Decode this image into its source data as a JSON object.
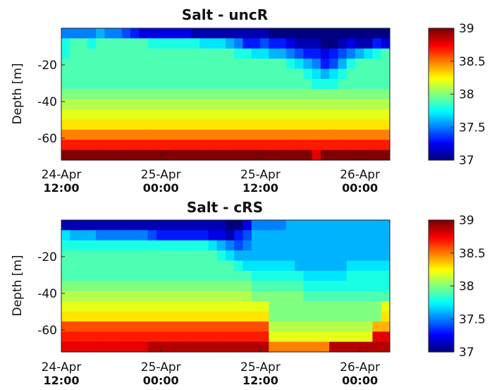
{
  "chart_data": [
    {
      "type": "heatmap",
      "title": "Salt - uncR",
      "ylabel": "Depth [m]",
      "xlabel": "",
      "x_range": [
        0,
        1.65
      ],
      "ylim": [
        -72,
        0
      ],
      "grid": false,
      "x_ticks": [
        {
          "x": 0.0,
          "line1": "24-Apr",
          "line2": "12:00"
        },
        {
          "x": 0.5,
          "line1": "25-Apr",
          "line2": "00:00"
        },
        {
          "x": 1.0,
          "line1": "25-Apr",
          "line2": "12:00"
        },
        {
          "x": 1.5,
          "line1": "26-Apr",
          "line2": "00:00"
        }
      ],
      "y_ticks": [
        {
          "v": -20,
          "label": "-20"
        },
        {
          "v": -40,
          "label": "-40"
        },
        {
          "v": -60,
          "label": "-60"
        }
      ],
      "colorbar": {
        "min": 37,
        "max": 39,
        "ticks": [
          {
            "v": 39,
            "label": "39"
          },
          {
            "v": 38.5,
            "label": "38.5"
          },
          {
            "v": 38,
            "label": "38"
          },
          {
            "v": 37.5,
            "label": "37.5"
          },
          {
            "v": 37,
            "label": "37"
          }
        ]
      },
      "values": [
        [
          37.5,
          37.5,
          37.5,
          37.5,
          37.6,
          37.5,
          37.5,
          37.4,
          37.3,
          37.2,
          37.2,
          37.2,
          37.2,
          37.2,
          37.2,
          37.1,
          37.1,
          37.1,
          37.1,
          37.1,
          37.1,
          37.1,
          37.1,
          37.1,
          37.0,
          37.0,
          37.0,
          37.0,
          37.0,
          37.0,
          37.0,
          37.0,
          37.0,
          37.0,
          37.0,
          37.0,
          37.0,
          37.0
        ],
        [
          37.8,
          37.9,
          37.9,
          37.8,
          37.9,
          37.9,
          37.9,
          37.9,
          37.9,
          37.9,
          37.8,
          37.8,
          37.8,
          37.8,
          37.8,
          37.8,
          37.7,
          37.7,
          37.7,
          37.6,
          37.5,
          37.3,
          37.3,
          37.4,
          37.3,
          37.3,
          37.2,
          37.1,
          37.1,
          37.1,
          37.0,
          37.0,
          37.1,
          37.2,
          37.1,
          37.1,
          37.3,
          37.2
        ],
        [
          37.8,
          37.9,
          37.9,
          37.9,
          37.9,
          37.9,
          37.9,
          37.9,
          37.9,
          37.9,
          37.9,
          37.9,
          37.9,
          37.9,
          37.9,
          37.9,
          37.9,
          37.9,
          37.9,
          37.9,
          37.8,
          37.8,
          37.7,
          37.7,
          37.6,
          37.6,
          37.5,
          37.4,
          37.3,
          37.3,
          37.2,
          37.3,
          37.4,
          37.5,
          37.6,
          37.7,
          37.8,
          37.9
        ],
        [
          37.9,
          37.9,
          37.9,
          37.9,
          37.9,
          37.9,
          37.9,
          37.9,
          37.9,
          37.9,
          37.9,
          37.9,
          37.9,
          37.9,
          37.9,
          37.9,
          37.9,
          37.9,
          37.9,
          37.9,
          37.9,
          37.9,
          37.9,
          37.9,
          37.9,
          37.9,
          37.8,
          37.7,
          37.6,
          37.5,
          37.3,
          37.4,
          37.6,
          37.8,
          37.9,
          37.9,
          37.9,
          37.9
        ],
        [
          37.9,
          37.9,
          37.9,
          37.9,
          37.9,
          37.9,
          37.9,
          37.9,
          37.9,
          37.9,
          37.9,
          37.9,
          37.9,
          37.9,
          37.9,
          37.9,
          37.9,
          37.9,
          37.9,
          37.9,
          37.9,
          37.9,
          37.9,
          37.9,
          37.9,
          37.9,
          37.9,
          37.9,
          37.8,
          37.7,
          37.6,
          37.7,
          37.8,
          37.9,
          37.9,
          37.9,
          37.9,
          37.9
        ],
        [
          37.9,
          37.9,
          37.9,
          37.9,
          37.9,
          37.9,
          37.9,
          37.9,
          37.9,
          37.9,
          37.9,
          37.9,
          37.9,
          37.9,
          37.9,
          37.9,
          37.9,
          37.9,
          37.9,
          37.9,
          37.9,
          37.9,
          37.9,
          37.9,
          37.9,
          37.9,
          37.9,
          37.9,
          37.9,
          37.8,
          37.8,
          37.8,
          37.9,
          37.9,
          37.9,
          37.9,
          37.9,
          37.9
        ],
        [
          38.0,
          38.0,
          38.0,
          38.0,
          38.0,
          38.0,
          38.0,
          38.0,
          38.0,
          38.0,
          38.0,
          38.0,
          38.0,
          38.0,
          38.0,
          38.0,
          38.0,
          38.0,
          38.0,
          38.0,
          38.0,
          38.0,
          38.0,
          38.0,
          38.0,
          38.0,
          38.0,
          38.0,
          38.0,
          38.0,
          38.0,
          38.0,
          38.0,
          38.0,
          38.0,
          38.0,
          38.0,
          38.0
        ],
        [
          38.1,
          38.1,
          38.1,
          38.1,
          38.1,
          38.1,
          38.1,
          38.1,
          38.1,
          38.1,
          38.1,
          38.1,
          38.1,
          38.1,
          38.1,
          38.1,
          38.1,
          38.1,
          38.1,
          38.1,
          38.1,
          38.1,
          38.1,
          38.1,
          38.1,
          38.1,
          38.1,
          38.1,
          38.1,
          38.1,
          38.1,
          38.1,
          38.1,
          38.1,
          38.1,
          38.1,
          38.1,
          38.1
        ],
        [
          38.2,
          38.2,
          38.2,
          38.2,
          38.2,
          38.2,
          38.2,
          38.2,
          38.2,
          38.2,
          38.2,
          38.2,
          38.2,
          38.2,
          38.2,
          38.2,
          38.2,
          38.2,
          38.2,
          38.2,
          38.2,
          38.2,
          38.2,
          38.2,
          38.2,
          38.2,
          38.2,
          38.2,
          38.2,
          38.2,
          38.2,
          38.2,
          38.2,
          38.2,
          38.2,
          38.2,
          38.2,
          38.2
        ],
        [
          38.3,
          38.3,
          38.3,
          38.3,
          38.3,
          38.3,
          38.3,
          38.3,
          38.3,
          38.3,
          38.3,
          38.3,
          38.3,
          38.3,
          38.3,
          38.3,
          38.3,
          38.3,
          38.3,
          38.3,
          38.3,
          38.3,
          38.3,
          38.3,
          38.3,
          38.3,
          38.3,
          38.3,
          38.3,
          38.3,
          38.3,
          38.3,
          38.3,
          38.3,
          38.3,
          38.3,
          38.3,
          38.3
        ],
        [
          38.5,
          38.5,
          38.5,
          38.5,
          38.5,
          38.5,
          38.5,
          38.5,
          38.5,
          38.5,
          38.5,
          38.5,
          38.5,
          38.5,
          38.5,
          38.5,
          38.5,
          38.5,
          38.5,
          38.5,
          38.5,
          38.5,
          38.5,
          38.5,
          38.5,
          38.5,
          38.5,
          38.5,
          38.5,
          38.5,
          38.5,
          38.5,
          38.5,
          38.5,
          38.5,
          38.5,
          38.5,
          38.5
        ],
        [
          38.7,
          38.7,
          38.7,
          38.7,
          38.7,
          38.7,
          38.7,
          38.7,
          38.7,
          38.7,
          38.7,
          38.7,
          38.7,
          38.7,
          38.7,
          38.7,
          38.7,
          38.7,
          38.7,
          38.7,
          38.7,
          38.7,
          38.7,
          38.7,
          38.7,
          38.7,
          38.7,
          38.7,
          38.7,
          38.7,
          38.7,
          38.7,
          38.7,
          38.7,
          38.7,
          38.7,
          38.7,
          38.7
        ],
        [
          39.0,
          39.0,
          39.0,
          39.0,
          39.0,
          39.0,
          39.0,
          39.0,
          39.0,
          39.0,
          39.0,
          39.0,
          39.0,
          39.0,
          39.0,
          39.0,
          39.0,
          39.0,
          39.0,
          39.0,
          39.0,
          39.0,
          39.0,
          39.0,
          39.0,
          39.0,
          39.0,
          39.0,
          39.0,
          38.8,
          39.0,
          39.0,
          39.0,
          39.0,
          39.0,
          39.0,
          39.0,
          39.0
        ]
      ]
    },
    {
      "type": "heatmap",
      "title": "Salt - cRS",
      "ylabel": "Depth [m]",
      "xlabel": "",
      "x_range": [
        0,
        1.65
      ],
      "ylim": [
        -72,
        0
      ],
      "grid": false,
      "x_ticks": [
        {
          "x": 0.0,
          "line1": "24-Apr",
          "line2": "12:00"
        },
        {
          "x": 0.5,
          "line1": "25-Apr",
          "line2": "00:00"
        },
        {
          "x": 1.0,
          "line1": "25-Apr",
          "line2": "12:00"
        },
        {
          "x": 1.5,
          "line1": "26-Apr",
          "line2": "00:00"
        }
      ],
      "y_ticks": [
        {
          "v": -20,
          "label": "-20"
        },
        {
          "v": -40,
          "label": "-40"
        },
        {
          "v": -60,
          "label": "-60"
        }
      ],
      "colorbar": {
        "min": 37,
        "max": 39,
        "ticks": [
          {
            "v": 39,
            "label": "39"
          },
          {
            "v": 38.5,
            "label": "38.5"
          },
          {
            "v": 38,
            "label": "38"
          },
          {
            "v": 37.5,
            "label": "37.5"
          },
          {
            "v": 37,
            "label": "37"
          }
        ]
      },
      "values": [
        [
          37.1,
          37.1,
          37.1,
          37.1,
          37.1,
          37.1,
          37.1,
          37.1,
          37.1,
          37.1,
          37.1,
          37.1,
          37.1,
          37.1,
          37.1,
          37.1,
          37.1,
          37.1,
          37.1,
          37.0,
          37.0,
          37.2,
          37.5,
          37.5,
          37.5,
          37.5,
          37.6,
          37.6,
          37.6,
          37.6,
          37.6,
          37.6,
          37.6,
          37.6,
          37.6,
          37.6,
          37.6,
          37.6
        ],
        [
          37.7,
          37.6,
          37.6,
          37.6,
          37.5,
          37.5,
          37.5,
          37.5,
          37.5,
          37.5,
          37.4,
          37.3,
          37.3,
          37.3,
          37.3,
          37.3,
          37.3,
          37.2,
          37.2,
          37.1,
          37.3,
          37.4,
          37.6,
          37.6,
          37.6,
          37.6,
          37.6,
          37.6,
          37.6,
          37.6,
          37.6,
          37.6,
          37.6,
          37.6,
          37.6,
          37.6,
          37.6,
          37.6
        ],
        [
          37.8,
          37.8,
          37.8,
          37.8,
          37.8,
          37.8,
          37.8,
          37.8,
          37.8,
          37.8,
          37.8,
          37.8,
          37.8,
          37.8,
          37.8,
          37.8,
          37.8,
          37.7,
          37.6,
          37.5,
          37.4,
          37.5,
          37.6,
          37.6,
          37.6,
          37.6,
          37.6,
          37.6,
          37.6,
          37.6,
          37.6,
          37.6,
          37.6,
          37.6,
          37.6,
          37.6,
          37.6,
          37.6
        ],
        [
          37.9,
          37.9,
          37.9,
          37.9,
          37.9,
          37.9,
          37.9,
          37.9,
          37.9,
          37.9,
          37.9,
          37.9,
          37.9,
          37.9,
          37.9,
          37.9,
          37.9,
          37.9,
          37.8,
          37.7,
          37.6,
          37.6,
          37.6,
          37.6,
          37.6,
          37.6,
          37.6,
          37.6,
          37.6,
          37.6,
          37.6,
          37.6,
          37.6,
          37.6,
          37.6,
          37.6,
          37.6,
          37.6
        ],
        [
          37.9,
          37.9,
          37.9,
          37.9,
          37.9,
          37.9,
          37.9,
          37.9,
          37.9,
          37.9,
          37.9,
          37.9,
          37.9,
          37.9,
          37.9,
          37.9,
          37.9,
          37.9,
          37.9,
          37.9,
          37.8,
          37.7,
          37.7,
          37.7,
          37.7,
          37.7,
          37.7,
          37.6,
          37.6,
          37.6,
          37.6,
          37.6,
          37.6,
          37.7,
          37.7,
          37.7,
          37.7,
          37.7
        ],
        [
          37.9,
          37.9,
          37.9,
          37.9,
          37.9,
          37.9,
          37.9,
          37.9,
          37.9,
          37.9,
          37.9,
          37.9,
          37.9,
          37.9,
          37.9,
          37.9,
          37.9,
          37.9,
          37.9,
          37.9,
          37.9,
          37.9,
          37.8,
          37.8,
          37.8,
          37.8,
          37.8,
          37.8,
          37.7,
          37.7,
          37.7,
          37.7,
          37.7,
          37.8,
          37.8,
          37.8,
          37.8,
          37.8
        ],
        [
          38.0,
          38.0,
          38.0,
          38.0,
          38.0,
          38.0,
          38.0,
          38.0,
          38.0,
          38.0,
          38.0,
          38.0,
          38.0,
          38.0,
          38.0,
          38.0,
          38.0,
          38.0,
          38.0,
          38.0,
          38.0,
          38.0,
          37.9,
          37.9,
          37.9,
          37.9,
          37.9,
          37.9,
          37.8,
          37.8,
          37.8,
          37.8,
          37.8,
          37.8,
          37.8,
          37.8,
          37.8,
          37.8
        ],
        [
          38.1,
          38.1,
          38.1,
          38.1,
          38.1,
          38.1,
          38.1,
          38.1,
          38.1,
          38.1,
          38.1,
          38.1,
          38.1,
          38.1,
          38.1,
          38.1,
          38.1,
          38.1,
          38.1,
          38.1,
          38.1,
          38.1,
          38.0,
          38.0,
          38.0,
          38.0,
          38.0,
          38.0,
          37.9,
          37.9,
          37.9,
          37.9,
          37.9,
          37.9,
          37.9,
          37.9,
          37.9,
          37.9
        ],
        [
          38.2,
          38.2,
          38.2,
          38.2,
          38.2,
          38.2,
          38.2,
          38.2,
          38.2,
          38.2,
          38.2,
          38.2,
          38.2,
          38.2,
          38.2,
          38.2,
          38.2,
          38.2,
          38.2,
          38.2,
          38.2,
          38.2,
          38.2,
          38.2,
          38.0,
          38.0,
          38.0,
          38.0,
          38.0,
          38.0,
          38.0,
          38.0,
          38.0,
          38.0,
          38.0,
          38.0,
          38.0,
          38.2
        ],
        [
          38.3,
          38.3,
          38.3,
          38.3,
          38.3,
          38.3,
          38.3,
          38.3,
          38.3,
          38.3,
          38.3,
          38.3,
          38.3,
          38.3,
          38.3,
          38.3,
          38.3,
          38.3,
          38.3,
          38.3,
          38.3,
          38.3,
          38.3,
          38.3,
          38.0,
          38.0,
          38.0,
          38.0,
          38.0,
          38.0,
          38.0,
          38.0,
          38.0,
          38.0,
          38.0,
          38.0,
          38.0,
          38.3
        ],
        [
          38.6,
          38.6,
          38.6,
          38.6,
          38.6,
          38.6,
          38.6,
          38.6,
          38.6,
          38.6,
          38.6,
          38.6,
          38.6,
          38.6,
          38.6,
          38.6,
          38.6,
          38.6,
          38.6,
          38.6,
          38.6,
          38.6,
          38.6,
          38.6,
          38.1,
          38.1,
          38.1,
          38.1,
          38.1,
          38.1,
          38.1,
          38.1,
          38.1,
          38.1,
          38.1,
          38.1,
          38.4,
          38.4
        ],
        [
          38.7,
          38.7,
          38.7,
          38.7,
          38.7,
          38.7,
          38.7,
          38.7,
          38.7,
          38.7,
          38.7,
          38.7,
          38.7,
          38.7,
          38.7,
          38.7,
          38.7,
          38.7,
          38.7,
          38.7,
          38.7,
          38.7,
          38.7,
          38.7,
          38.2,
          38.2,
          38.2,
          38.2,
          38.2,
          38.2,
          38.2,
          38.2,
          38.2,
          38.2,
          38.2,
          38.2,
          38.8,
          38.8
        ],
        [
          38.8,
          38.8,
          38.8,
          38.8,
          38.8,
          38.8,
          38.8,
          38.8,
          38.8,
          38.8,
          38.9,
          38.9,
          38.9,
          38.9,
          38.9,
          38.9,
          38.9,
          38.9,
          38.9,
          38.9,
          38.9,
          38.9,
          38.9,
          38.9,
          38.5,
          38.5,
          38.5,
          38.5,
          38.5,
          38.5,
          38.5,
          38.9,
          38.9,
          38.9,
          38.9,
          38.9,
          38.9,
          38.9
        ]
      ]
    }
  ]
}
